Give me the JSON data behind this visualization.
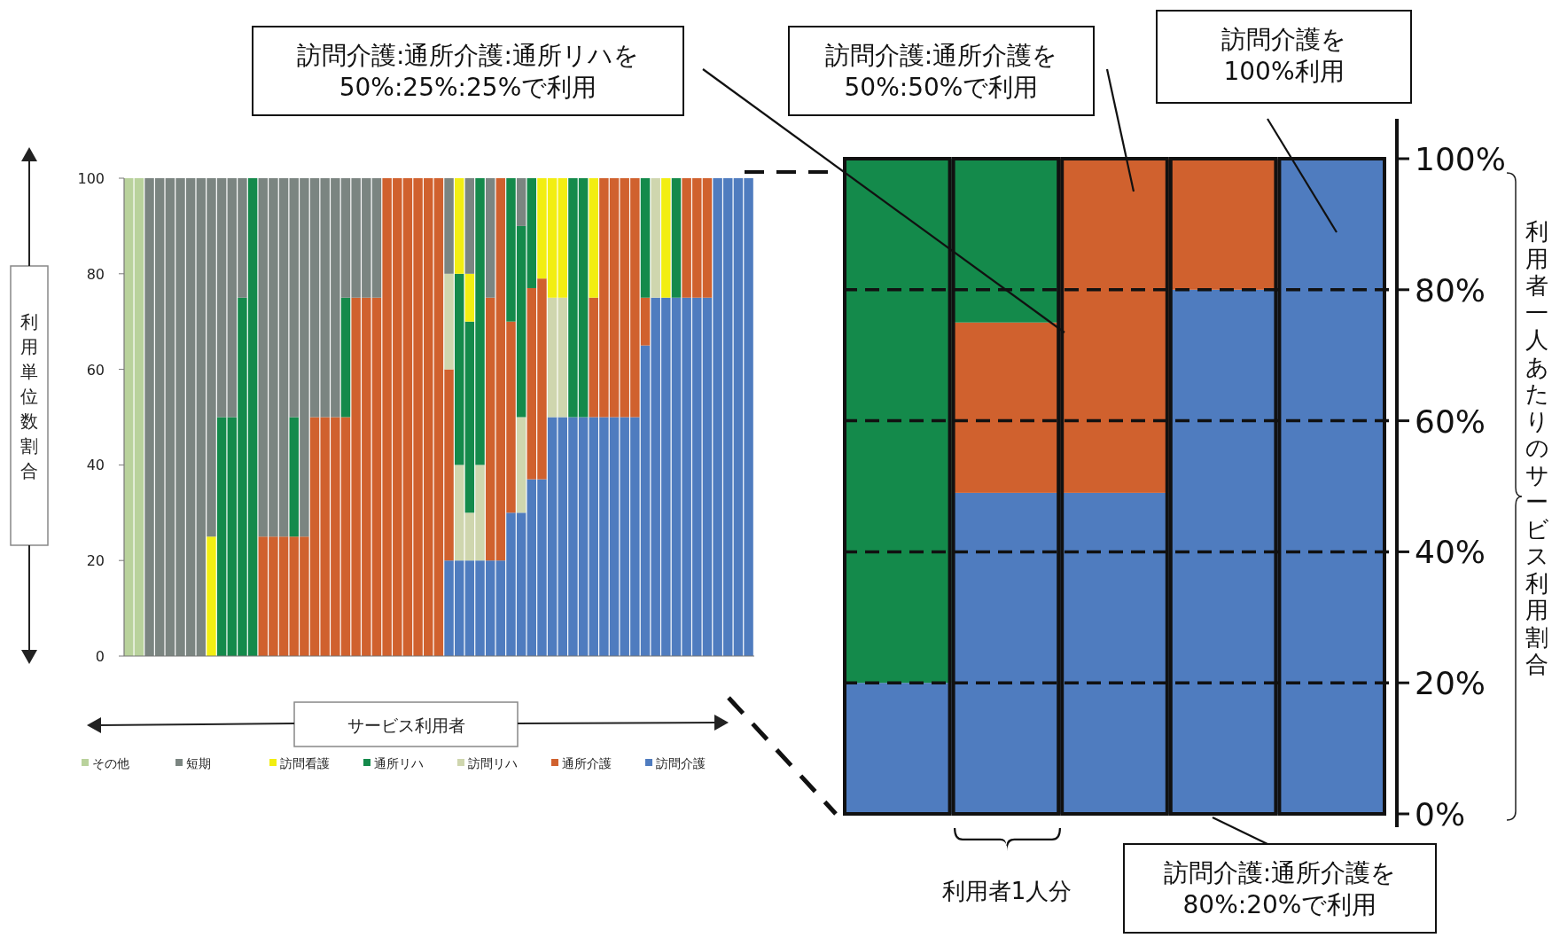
{
  "chart_data": [
    {
      "type": "bar",
      "stacked": true,
      "ylabel": "利用単位数割合",
      "xlabel": "サービス利用者",
      "ylim": [
        0,
        100
      ],
      "yticks": [
        0,
        20,
        40,
        60,
        80,
        100
      ],
      "legend": "bottom",
      "grid": false,
      "categories": [
        null,
        null,
        null,
        null,
        null,
        null,
        null,
        null,
        null,
        null,
        null,
        null,
        null,
        null,
        null,
        null,
        null,
        null,
        null,
        null,
        null,
        null,
        null,
        null,
        null,
        null,
        null,
        null,
        null,
        null,
        null,
        null,
        null,
        null,
        null,
        null,
        null,
        null,
        null,
        null,
        null,
        null,
        null,
        null,
        null,
        null,
        null,
        null,
        null,
        null,
        null,
        null,
        null,
        null,
        null,
        null,
        null,
        null,
        null,
        null,
        null
      ],
      "series": [
        {
          "name": "訪問介護",
          "color": "#4f7cbf",
          "values": [
            0,
            0,
            0,
            0,
            0,
            0,
            0,
            0,
            0,
            0,
            0,
            0,
            0,
            0,
            0,
            0,
            0,
            0,
            0,
            0,
            0,
            0,
            0,
            0,
            0,
            0,
            0,
            0,
            0,
            0,
            0,
            20,
            20,
            20,
            20,
            20,
            20,
            30,
            30,
            37,
            37,
            50,
            50,
            50,
            50,
            50,
            50,
            50,
            50,
            50,
            65,
            75,
            75,
            75,
            75,
            75,
            75,
            100,
            100,
            100,
            100
          ]
        },
        {
          "name": "通所介護",
          "color": "#d0612e",
          "values": [
            0,
            0,
            0,
            0,
            0,
            0,
            0,
            0,
            0,
            0,
            0,
            0,
            0,
            25,
            25,
            25,
            25,
            25,
            50,
            50,
            50,
            50,
            75,
            75,
            75,
            100,
            100,
            100,
            100,
            100,
            100,
            40,
            0,
            0,
            0,
            55,
            80,
            40,
            0,
            40,
            42,
            0,
            0,
            0,
            0,
            25,
            50,
            50,
            50,
            50,
            10,
            0,
            0,
            0,
            25,
            25,
            25,
            0,
            0,
            0,
            0
          ]
        },
        {
          "name": "訪問リハ",
          "color": "#cfd6ae",
          "values": [
            0,
            0,
            0,
            0,
            0,
            0,
            0,
            0,
            0,
            0,
            0,
            0,
            0,
            0,
            0,
            0,
            0,
            0,
            0,
            0,
            0,
            0,
            0,
            0,
            0,
            0,
            0,
            0,
            0,
            0,
            0,
            20,
            20,
            10,
            20,
            0,
            0,
            0,
            20,
            0,
            0,
            25,
            25,
            0,
            0,
            0,
            0,
            0,
            0,
            0,
            0,
            25,
            0,
            0,
            0,
            0,
            0,
            0,
            0,
            0,
            0
          ]
        },
        {
          "name": "通所リハ",
          "color": "#148a4b",
          "values": [
            0,
            0,
            0,
            0,
            0,
            0,
            0,
            0,
            0,
            50,
            50,
            75,
            100,
            0,
            0,
            0,
            25,
            0,
            0,
            0,
            0,
            25,
            0,
            0,
            0,
            0,
            0,
            0,
            0,
            0,
            0,
            0,
            40,
            40,
            60,
            0,
            0,
            30,
            40,
            23,
            0,
            0,
            0,
            50,
            50,
            0,
            0,
            0,
            0,
            0,
            25,
            0,
            0,
            25,
            0,
            0,
            0,
            0,
            0,
            0,
            0
          ]
        },
        {
          "name": "訪問看護",
          "color": "#f2ee12",
          "values": [
            0,
            0,
            0,
            0,
            0,
            0,
            0,
            0,
            25,
            0,
            0,
            0,
            0,
            0,
            0,
            0,
            0,
            0,
            0,
            0,
            0,
            0,
            0,
            0,
            0,
            0,
            0,
            0,
            0,
            0,
            0,
            0,
            20,
            10,
            0,
            0,
            0,
            0,
            0,
            0,
            21,
            25,
            25,
            0,
            0,
            25,
            0,
            0,
            0,
            0,
            0,
            0,
            25,
            0,
            0,
            0,
            0,
            0,
            0,
            0,
            0
          ]
        },
        {
          "name": "短期",
          "color": "#7b8581",
          "values": [
            0,
            0,
            100,
            100,
            100,
            100,
            100,
            100,
            75,
            50,
            50,
            25,
            0,
            75,
            75,
            75,
            50,
            75,
            50,
            50,
            50,
            25,
            25,
            25,
            25,
            0,
            0,
            0,
            0,
            0,
            0,
            20,
            0,
            20,
            0,
            25,
            0,
            0,
            10,
            0,
            0,
            0,
            0,
            0,
            0,
            0,
            0,
            0,
            0,
            0,
            0,
            0,
            0,
            0,
            0,
            0,
            0,
            0,
            0,
            0,
            0
          ]
        },
        {
          "name": "その他",
          "color": "#b9d29c",
          "values": [
            100,
            100,
            0,
            0,
            0,
            0,
            0,
            0,
            0,
            0,
            0,
            0,
            0,
            0,
            0,
            0,
            0,
            0,
            0,
            0,
            0,
            0,
            0,
            0,
            0,
            0,
            0,
            0,
            0,
            0,
            0,
            0,
            0,
            0,
            0,
            0,
            0,
            0,
            0,
            0,
            0,
            0,
            0,
            0,
            0,
            0,
            0,
            0,
            0,
            0,
            0,
            0,
            0,
            0,
            0,
            0,
            0,
            0,
            0,
            0,
            0
          ]
        }
      ]
    },
    {
      "type": "bar",
      "stacked": true,
      "ylabel": "利用者一人あたりのサービス利用割合",
      "ylim": [
        0,
        100
      ],
      "grid": "y",
      "yticks": [
        {
          "value": 0,
          "label": "0%"
        },
        {
          "value": 20,
          "label": "20%"
        },
        {
          "value": 40,
          "label": "40%"
        },
        {
          "value": 60,
          "label": "60%"
        },
        {
          "value": 80,
          "label": "80%"
        },
        {
          "value": 100,
          "label": "100%"
        }
      ],
      "categories": [
        null,
        null,
        null,
        null,
        null
      ],
      "series": [
        {
          "color": "#4f7cbf",
          "values": [
            20,
            49,
            49,
            80,
            100
          ]
        },
        {
          "color": "#d0612e",
          "values": [
            0,
            26,
            51,
            20,
            0
          ]
        },
        {
          "color": "#148a4b",
          "values": [
            80,
            25,
            0,
            0,
            0
          ]
        }
      ],
      "annotations": [
        "訪問介護:通所介護:通所リハを\n50%:25%:25%で利用",
        "訪問介護:通所介護を\n50%:50%で利用",
        "訪問介護を\n100%利用",
        "訪問介護:通所介護を\n80%:20%で利用",
        "利用者1人分"
      ]
    }
  ]
}
